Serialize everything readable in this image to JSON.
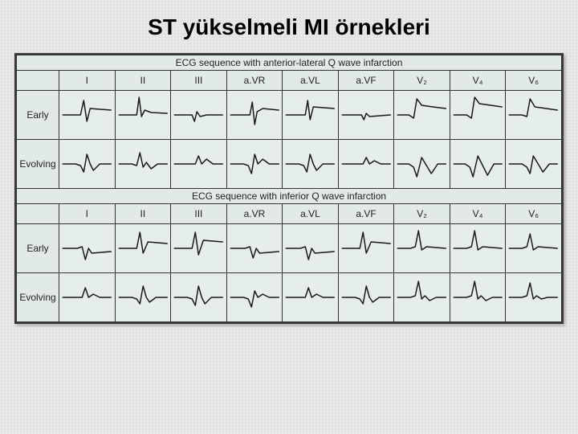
{
  "page": {
    "title": "ST yükselmeli MI örnekleri"
  },
  "sheet": {
    "background_color": "#dfe8e6",
    "border_color": "#333333",
    "cell_background": "#e6eeec",
    "stroke_color": "#1a1a1a",
    "stroke_width": 1.5,
    "lead_font_size": 12,
    "row_label_font_size": 11,
    "title_font_size": 13
  },
  "leads": [
    "I",
    "II",
    "III",
    "a.VR",
    "a.VL",
    "a.VF",
    "V₂",
    "V₄",
    "V₆"
  ],
  "row_labels": [
    "Early",
    "Evolving"
  ],
  "sections": [
    {
      "title": "ECG sequence with anterior-lateral Q wave infarction",
      "rows": [
        {
          "label_key": 0,
          "waves": [
            "M0 28 L18 28 L22 28 L26 10 L30 36 L34 20 L60 22",
            "M0 28 L18 28 L22 28 L25 6 L28 30 L32 22 L40 25 L60 26",
            "M0 28 L18 28 L22 28 L25 36 L28 24 L32 30 L40 28 L60 28",
            "M0 28 L18 28 L24 28 L27 12 L30 40 L33 24 L40 20 L60 22",
            "M0 28 L18 28 L24 28 L27 10 L30 34 L34 18 L60 20",
            "M0 28 L18 28 L24 28 L27 34 L30 26 L34 30 L60 28",
            "M0 28 L14 28 L20 32 L24 8 L30 16 L44 18 L60 20",
            "M0 28 L16 28 L22 32 L26 6 L32 14 L46 16 L60 18",
            "M0 28 L16 28 L22 30 L26 8 L32 18 L46 20 L60 22"
          ]
        },
        {
          "label_key": 1,
          "waves": [
            "M0 28 L16 28 L22 30 L26 38 L30 16 L34 28 L38 36 L46 28 L60 28",
            "M0 28 L16 28 L22 30 L26 14 L30 32 L34 26 L40 34 L48 28 L60 28",
            "M0 28 L16 28 L26 28 L30 18 L34 28 L40 22 L48 28 L60 28",
            "M0 28 L16 28 L22 30 L26 40 L30 16 L34 28 L40 22 L48 28 L60 28",
            "M0 28 L16 28 L22 30 L26 38 L30 16 L34 28 L38 36 L46 28 L60 28",
            "M0 28 L16 28 L26 28 L30 20 L34 28 L40 24 L48 28 L60 28",
            "M0 28 L14 28 L20 32 L24 44 L30 20 L36 30 L42 40 L50 28 L60 28",
            "M0 28 L14 28 L20 32 L24 44 L30 18 L36 30 L42 42 L50 28 L60 28",
            "M0 28 L16 28 L22 32 L26 40 L30 18 L36 28 L42 38 L50 28 L60 28"
          ]
        }
      ]
    },
    {
      "title": "ECG sequence with inferior Q wave infarction",
      "rows": [
        {
          "label_key": 0,
          "waves": [
            "M0 28 L18 28 L24 26 L28 42 L32 28 L36 34 L60 32",
            "M0 28 L18 28 L22 28 L26 8 L30 34 L36 20 L60 22",
            "M0 28 L18 28 L22 28 L26 8 L30 36 L36 18 L60 20",
            "M0 28 L18 28 L24 26 L28 40 L32 28 L36 34 L60 32",
            "M0 28 L18 28 L24 26 L28 42 L32 28 L36 34 L60 32",
            "M0 28 L18 28 L22 28 L26 8 L30 34 L36 20 L60 22",
            "M0 28 L16 28 L22 26 L26 6 L30 30 L36 26 L60 28",
            "M0 28 L16 28 L22 26 L26 6 L30 30 L36 26 L60 28",
            "M0 28 L16 28 L22 26 L26 10 L30 30 L36 26 L60 28"
          ]
        },
        {
          "label_key": 1,
          "waves": [
            "M0 28 L16 28 L24 28 L28 16 L32 28 L38 24 L46 28 L60 28",
            "M0 28 L16 28 L22 30 L26 36 L30 14 L34 28 L38 34 L46 28 L60 28",
            "M0 28 L16 28 L22 30 L26 38 L30 14 L34 28 L38 36 L46 28 L60 28",
            "M0 28 L16 28 L22 30 L26 40 L30 20 L34 28 L40 24 L48 28 L60 28",
            "M0 28 L16 28 L24 28 L28 16 L32 28 L38 24 L46 28 L60 28",
            "M0 28 L16 28 L22 30 L26 36 L30 14 L34 28 L38 34 L46 28 L60 28",
            "M0 28 L16 28 L22 26 L26 8 L30 30 L34 26 L40 32 L48 28 L60 28",
            "M0 28 L16 28 L22 26 L26 8 L30 30 L34 26 L40 32 L48 28 L60 28",
            "M0 28 L16 28 L22 26 L26 10 L30 30 L34 26 L40 30 L48 28 L60 28"
          ]
        }
      ]
    }
  ]
}
